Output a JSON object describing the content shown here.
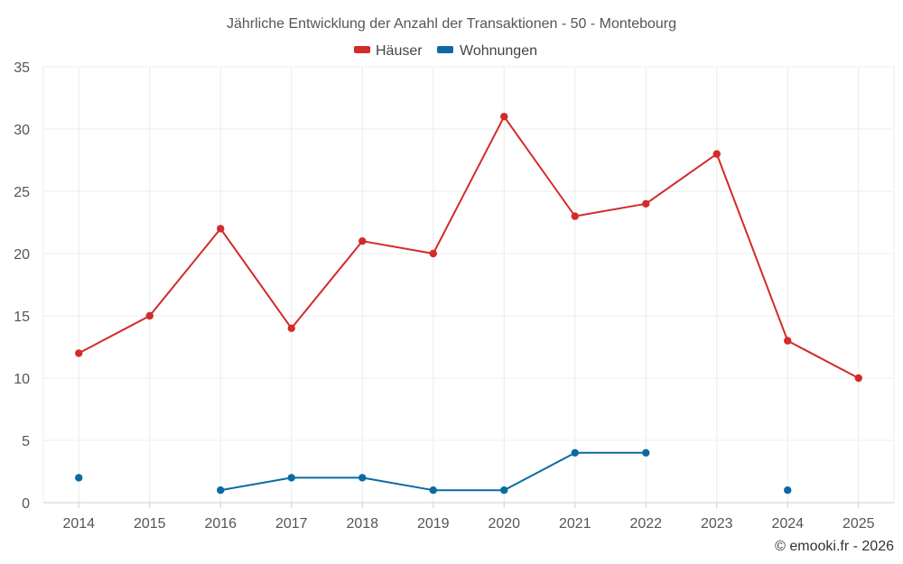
{
  "chart_data": {
    "type": "line",
    "title": "Jährliche Entwicklung der Anzahl der Transaktionen - 50 - Montebourg",
    "categories": [
      "2014",
      "2015",
      "2016",
      "2017",
      "2018",
      "2019",
      "2020",
      "2021",
      "2022",
      "2023",
      "2024",
      "2025"
    ],
    "ylim": [
      0,
      35
    ],
    "yticks": [
      0,
      5,
      10,
      15,
      20,
      25,
      30,
      35
    ],
    "grid": true,
    "legend_position": "top-center",
    "series": [
      {
        "name": "Häuser",
        "color": "#d32a2a",
        "values": [
          12,
          15,
          22,
          14,
          21,
          20,
          31,
          23,
          24,
          28,
          13,
          10
        ]
      },
      {
        "name": "Wohnungen",
        "color": "#0b6aa2",
        "values": [
          2,
          null,
          1,
          2,
          2,
          1,
          1,
          4,
          4,
          null,
          1,
          null
        ]
      }
    ],
    "credit": "© emooki.fr - 2026"
  }
}
